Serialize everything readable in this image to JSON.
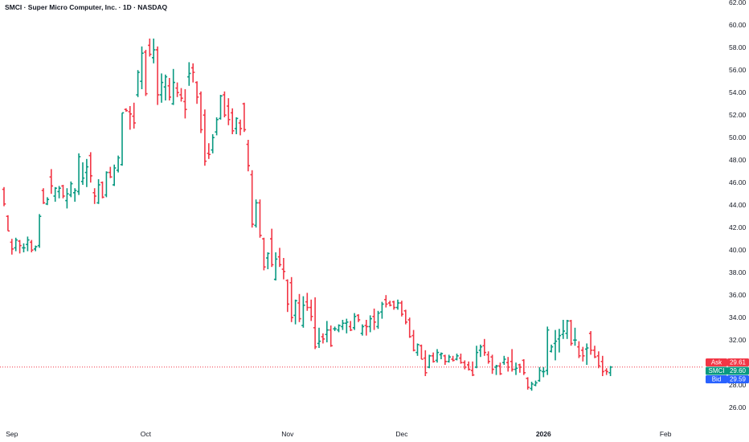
{
  "header": {
    "title": "SMCI · Super Micro Computer, Inc. · 1D · NASDAQ"
  },
  "chart_data": {
    "type": "ohlc",
    "symbol": "SMCI",
    "ylim": [
      25,
      62.5
    ],
    "y_ticks": [
      "26.00",
      "28.00",
      "30.00",
      "32.00",
      "34.00",
      "36.00",
      "38.00",
      "40.00",
      "42.00",
      "44.00",
      "46.00",
      "48.00",
      "50.00",
      "52.00",
      "54.00",
      "56.00",
      "58.00",
      "60.00",
      "62.00"
    ],
    "x_ticks": [
      {
        "label": "Sep",
        "bar": 2,
        "bold": false
      },
      {
        "label": "Oct",
        "bar": 36,
        "bold": false
      },
      {
        "label": "Nov",
        "bar": 72,
        "bold": false
      },
      {
        "label": "Dec",
        "bar": 101,
        "bold": false
      },
      {
        "label": "2026",
        "bar": 137,
        "bold": true
      },
      {
        "label": "Feb",
        "bar": 168,
        "bold": false
      }
    ],
    "colors": {
      "up": "#089981",
      "down": "#f23645",
      "ask": "#f23645",
      "last": "#089981",
      "bid": "#2962ff"
    },
    "price_labels": [
      {
        "name": "Ask",
        "value": "29.61",
        "color": "#f23645"
      },
      {
        "name": "SMCI",
        "value": "29.60",
        "color": "#089981"
      },
      {
        "name": "Bid",
        "value": "29.59",
        "color": "#2962ff"
      }
    ],
    "last_price": 29.6,
    "ohlc": [
      [
        45.4,
        45.6,
        43.9,
        44.1
      ],
      [
        43.0,
        43.1,
        41.7,
        41.7
      ],
      [
        40.7,
        41.0,
        39.6,
        40.1
      ],
      [
        40.2,
        41.1,
        39.9,
        40.9
      ],
      [
        40.8,
        40.9,
        39.7,
        40.4
      ],
      [
        40.2,
        40.6,
        39.8,
        40.2
      ],
      [
        40.5,
        41.2,
        39.9,
        40.9
      ],
      [
        40.7,
        40.9,
        39.8,
        40.0
      ],
      [
        40.1,
        40.4,
        39.9,
        40.3
      ],
      [
        40.4,
        43.2,
        40.2,
        43.0
      ],
      [
        45.3,
        45.5,
        44.1,
        44.2
      ],
      [
        44.1,
        44.7,
        44.0,
        44.5
      ],
      [
        46.5,
        47.2,
        45.0,
        45.7
      ],
      [
        44.8,
        45.6,
        44.3,
        45.5
      ],
      [
        45.2,
        45.7,
        44.6,
        45.5
      ],
      [
        45.7,
        45.8,
        44.6,
        44.8
      ],
      [
        44.4,
        45.5,
        43.7,
        45.0
      ],
      [
        44.9,
        46.1,
        44.7,
        45.9
      ],
      [
        45.1,
        45.5,
        44.3,
        45.3
      ],
      [
        45.2,
        48.6,
        44.9,
        48.3
      ],
      [
        46.1,
        47.8,
        45.8,
        46.4
      ],
      [
        46.9,
        48.1,
        45.6,
        47.4
      ],
      [
        48.4,
        48.7,
        46.0,
        46.6
      ],
      [
        45.1,
        45.5,
        44.1,
        44.8
      ],
      [
        44.2,
        46.3,
        44.1,
        45.8
      ],
      [
        46.0,
        46.1,
        44.6,
        44.7
      ],
      [
        44.9,
        47.0,
        44.7,
        46.9
      ],
      [
        46.9,
        47.4,
        46.4,
        46.5
      ],
      [
        45.8,
        47.6,
        45.7,
        47.3
      ],
      [
        47.1,
        48.4,
        46.9,
        48.2
      ],
      [
        47.6,
        52.2,
        47.5,
        52.2
      ],
      [
        52.5,
        52.6,
        52.3,
        52.4
      ],
      [
        52.3,
        52.8,
        50.7,
        52.1
      ],
      [
        51.9,
        53.1,
        50.8,
        51.3
      ],
      [
        53.8,
        56.0,
        53.6,
        55.8
      ],
      [
        55.0,
        58.1,
        54.3,
        57.5
      ],
      [
        57.6,
        57.8,
        53.7,
        53.9
      ],
      [
        58.2,
        58.8,
        57.2,
        57.4
      ],
      [
        57.1,
        58.8,
        56.6,
        57.8
      ],
      [
        57.8,
        58.1,
        52.9,
        53.8
      ],
      [
        53.8,
        55.7,
        53.1,
        54.9
      ],
      [
        54.5,
        55.6,
        53.3,
        55.4
      ],
      [
        54.6,
        55.3,
        53.3,
        53.6
      ],
      [
        53.0,
        56.1,
        52.9,
        54.9
      ],
      [
        54.4,
        54.9,
        53.6,
        54.0
      ],
      [
        53.8,
        54.4,
        53.2,
        53.5
      ],
      [
        53.2,
        54.3,
        51.7,
        52.5
      ],
      [
        55.4,
        56.7,
        54.6,
        55.7
      ],
      [
        56.2,
        56.6,
        54.9,
        55.8
      ],
      [
        54.9,
        55.0,
        53.0,
        53.6
      ],
      [
        53.9,
        54.1,
        50.4,
        50.7
      ],
      [
        52.0,
        52.5,
        47.5,
        47.9
      ],
      [
        48.6,
        49.5,
        48.1,
        48.5
      ],
      [
        48.9,
        50.3,
        48.6,
        50.0
      ],
      [
        50.5,
        51.8,
        50.2,
        51.6
      ],
      [
        51.7,
        53.8,
        51.6,
        53.7
      ],
      [
        53.8,
        54.1,
        51.8,
        52.0
      ],
      [
        52.8,
        53.5,
        51.1,
        51.6
      ],
      [
        52.2,
        52.6,
        50.3,
        50.6
      ],
      [
        50.8,
        51.8,
        50.3,
        51.7
      ],
      [
        51.3,
        51.6,
        50.2,
        50.8
      ],
      [
        53.0,
        53.1,
        50.5,
        50.7
      ],
      [
        49.4,
        49.8,
        47.0,
        47.5
      ],
      [
        46.7,
        47.1,
        42.0,
        42.3
      ],
      [
        42.2,
        44.5,
        42.0,
        44.2
      ],
      [
        44.2,
        44.5,
        41.1,
        41.3
      ],
      [
        41.0,
        41.1,
        38.2,
        38.5
      ],
      [
        39.3,
        39.8,
        38.3,
        39.7
      ],
      [
        41.0,
        41.9,
        38.5,
        38.7
      ],
      [
        37.4,
        39.8,
        37.3,
        39.2
      ],
      [
        39.4,
        40.2,
        38.5,
        38.7
      ],
      [
        38.3,
        39.3,
        37.4,
        38.1
      ],
      [
        37.3,
        37.4,
        34.5,
        35.2
      ],
      [
        37.1,
        37.6,
        33.6,
        34.0
      ],
      [
        34.2,
        35.6,
        33.4,
        35.5
      ],
      [
        35.3,
        36.1,
        33.6,
        33.9
      ],
      [
        33.3,
        35.9,
        33.1,
        35.1
      ],
      [
        35.4,
        36.2,
        34.6,
        34.9
      ],
      [
        34.9,
        35.6,
        33.7,
        34.1
      ],
      [
        33.1,
        35.8,
        31.2,
        31.4
      ],
      [
        31.7,
        33.1,
        31.3,
        31.9
      ],
      [
        32.3,
        32.6,
        31.7,
        32.1
      ],
      [
        32.5,
        33.7,
        31.8,
        32.9
      ],
      [
        32.9,
        33.3,
        31.4,
        31.5
      ],
      [
        33.0,
        33.2,
        32.8,
        33.0
      ],
      [
        32.9,
        33.4,
        32.7,
        33.3
      ],
      [
        33.2,
        33.8,
        32.9,
        33.5
      ],
      [
        33.5,
        33.9,
        32.6,
        33.6
      ],
      [
        33.2,
        33.7,
        32.8,
        32.9
      ],
      [
        33.1,
        34.4,
        32.9,
        34.1
      ],
      [
        34.2,
        34.3,
        33.6,
        33.8
      ],
      [
        32.6,
        33.4,
        32.4,
        33.2
      ],
      [
        33.3,
        33.8,
        32.4,
        33.2
      ],
      [
        33.2,
        34.2,
        32.7,
        33.9
      ],
      [
        34.1,
        34.8,
        32.9,
        33.6
      ],
      [
        33.2,
        34.6,
        33.0,
        34.4
      ],
      [
        34.5,
        35.4,
        33.9,
        35.2
      ],
      [
        35.6,
        36.0,
        34.9,
        35.2
      ],
      [
        35.3,
        35.5,
        35.0,
        35.1
      ],
      [
        35.4,
        35.5,
        34.7,
        34.9
      ],
      [
        34.9,
        35.6,
        34.7,
        35.3
      ],
      [
        35.3,
        35.5,
        34.1,
        34.3
      ],
      [
        34.6,
        34.7,
        33.4,
        33.6
      ],
      [
        33.8,
        34.0,
        32.2,
        32.3
      ],
      [
        32.4,
        32.9,
        31.0,
        31.1
      ],
      [
        30.9,
        31.7,
        30.6,
        31.6
      ],
      [
        31.5,
        31.6,
        30.3,
        30.3
      ],
      [
        30.4,
        31.1,
        28.8,
        29.1
      ],
      [
        29.6,
        30.7,
        29.5,
        30.6
      ],
      [
        30.6,
        30.9,
        30.0,
        30.1
      ],
      [
        30.2,
        31.2,
        30.0,
        30.9
      ],
      [
        30.7,
        30.9,
        30.3,
        30.8
      ],
      [
        30.6,
        30.7,
        29.8,
        30.1
      ],
      [
        30.1,
        30.7,
        30.0,
        30.5
      ],
      [
        30.3,
        30.6,
        30.1,
        30.2
      ],
      [
        30.3,
        30.8,
        30.2,
        30.6
      ],
      [
        30.4,
        30.8,
        29.9,
        30.0
      ],
      [
        30.0,
        30.2,
        29.4,
        29.6
      ],
      [
        29.8,
        30.1,
        29.3,
        29.4
      ],
      [
        29.3,
        30.1,
        28.8,
        28.9
      ],
      [
        29.6,
        31.5,
        29.5,
        30.9
      ],
      [
        31.1,
        31.6,
        30.5,
        31.4
      ],
      [
        31.5,
        32.1,
        30.6,
        30.9
      ],
      [
        30.7,
        31.0,
        29.9,
        30.1
      ],
      [
        30.5,
        30.7,
        29.0,
        29.4
      ],
      [
        29.6,
        29.8,
        28.9,
        29.7
      ],
      [
        29.7,
        30.0,
        28.9,
        29.0
      ],
      [
        30.0,
        30.6,
        29.8,
        30.3
      ],
      [
        30.0,
        30.5,
        29.2,
        29.6
      ],
      [
        30.1,
        31.2,
        29.2,
        29.4
      ],
      [
        29.4,
        30.0,
        28.9,
        29.5
      ],
      [
        29.8,
        29.9,
        29.1,
        29.6
      ],
      [
        30.2,
        30.3,
        28.9,
        29.1
      ],
      [
        28.6,
        28.7,
        27.6,
        27.8
      ],
      [
        27.7,
        28.3,
        27.5,
        28.1
      ],
      [
        28.0,
        28.4,
        27.9,
        28.2
      ],
      [
        28.4,
        29.6,
        28.3,
        29.3
      ],
      [
        29.2,
        29.6,
        28.7,
        29.2
      ],
      [
        29.3,
        33.2,
        28.9,
        32.9
      ],
      [
        31.0,
        31.6,
        30.9,
        31.4
      ],
      [
        31.7,
        32.9,
        30.2,
        31.9
      ],
      [
        32.1,
        33.0,
        30.9,
        32.4
      ],
      [
        32.5,
        33.8,
        32.1,
        32.8
      ],
      [
        32.6,
        33.8,
        32.1,
        33.7
      ],
      [
        33.7,
        33.8,
        31.5,
        31.7
      ],
      [
        32.0,
        33.1,
        31.5,
        32.0
      ],
      [
        31.4,
        31.9,
        30.4,
        30.6
      ],
      [
        31.1,
        31.4,
        30.1,
        30.6
      ],
      [
        31.2,
        31.7,
        29.8,
        31.3
      ],
      [
        32.6,
        32.8,
        30.7,
        31.1
      ],
      [
        31.1,
        31.5,
        30.4,
        30.5
      ],
      [
        30.6,
        31.0,
        29.5,
        29.7
      ],
      [
        30.1,
        30.6,
        28.8,
        29.2
      ],
      [
        29.3,
        29.5,
        28.9,
        29.2
      ],
      [
        29.1,
        29.7,
        28.8,
        29.6
      ]
    ]
  }
}
